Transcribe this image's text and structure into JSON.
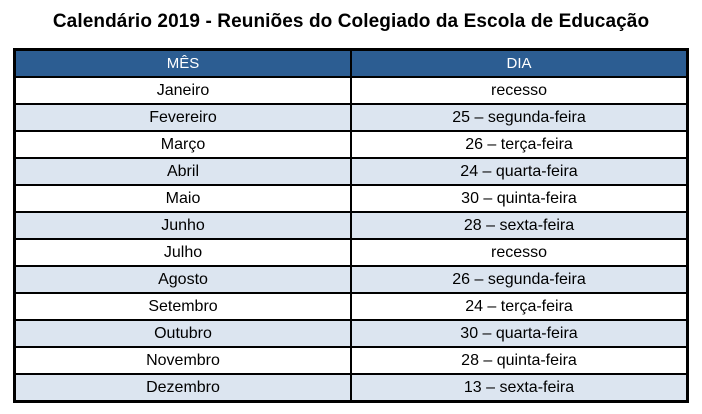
{
  "title": "Calendário 2019 - Reuniões do Colegiado da Escola de Educação",
  "colors": {
    "header_bg": "#2C5D92",
    "header_text": "#FFFFFF",
    "row_alt_bg": "#DCE5F0",
    "border": "#000000",
    "title_text": "#000000"
  },
  "table": {
    "columns": [
      "MÊS",
      "DIA"
    ],
    "rows": [
      {
        "mes": "Janeiro",
        "dia": "recesso"
      },
      {
        "mes": "Fevereiro",
        "dia": "25 – segunda-feira"
      },
      {
        "mes": "Março",
        "dia": "26 – terça-feira"
      },
      {
        "mes": "Abril",
        "dia": "24 – quarta-feira"
      },
      {
        "mes": "Maio",
        "dia": "30 – quinta-feira"
      },
      {
        "mes": "Junho",
        "dia": "28 – sexta-feira"
      },
      {
        "mes": "Julho",
        "dia": "recesso"
      },
      {
        "mes": "Agosto",
        "dia": "26 – segunda-feira"
      },
      {
        "mes": "Setembro",
        "dia": "24 – terça-feira"
      },
      {
        "mes": "Outubro",
        "dia": "30 – quarta-feira"
      },
      {
        "mes": "Novembro",
        "dia": "28 – quinta-feira"
      },
      {
        "mes": "Dezembro",
        "dia": "13 – sexta-feira"
      }
    ]
  }
}
